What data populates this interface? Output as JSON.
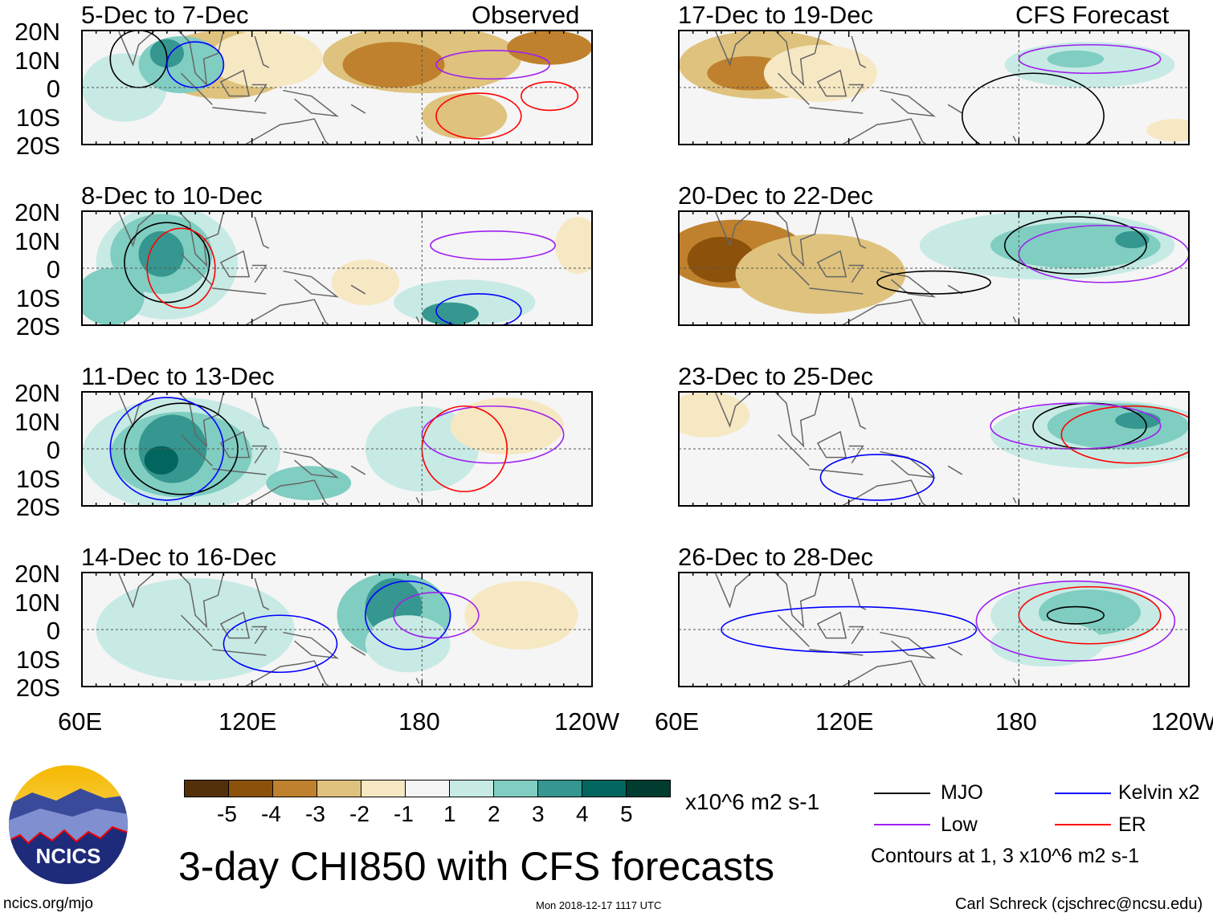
{
  "header": {
    "left_label": "Observed",
    "right_label": "CFS Forecast"
  },
  "panels": [
    {
      "title": "5-Dec to 7-Dec"
    },
    {
      "title": "8-Dec to 10-Dec"
    },
    {
      "title": "11-Dec to 13-Dec"
    },
    {
      "title": "14-Dec to 16-Dec"
    },
    {
      "title": "17-Dec to 19-Dec"
    },
    {
      "title": "20-Dec to 22-Dec"
    },
    {
      "title": "23-Dec to 25-Dec"
    },
    {
      "title": "26-Dec to 28-Dec"
    }
  ],
  "lat_labels": [
    "20N",
    "10N",
    "0",
    "10S",
    "20S"
  ],
  "lon_labels": [
    "60E",
    "120E",
    "180",
    "120W"
  ],
  "colorbar": {
    "levels": [
      "-5",
      "-4",
      "-3",
      "-2",
      "-1",
      "1",
      "2",
      "3",
      "4",
      "5"
    ],
    "colors": [
      "#54300a",
      "#8c510a",
      "#bf812d",
      "#dfc27d",
      "#f6e8c3",
      "#f5f5f5",
      "#c7eae5",
      "#80cdc1",
      "#35978f",
      "#01665e",
      "#003c30"
    ],
    "units": "x10^6 m2 s-1"
  },
  "legend": {
    "items": [
      {
        "label": "MJO",
        "color": "#000000"
      },
      {
        "label": "Kelvin x2",
        "color": "#0000ff"
      },
      {
        "label": "Low",
        "color": "#a020f0"
      },
      {
        "label": "ER",
        "color": "#ff0000"
      }
    ],
    "note": "Contours at 1, 3 x10^6 m2 s-1"
  },
  "title": "3-day CHI850 with CFS forecasts",
  "logo": {
    "text": "NCICS"
  },
  "footer": {
    "url": "ncics.org/mjo",
    "timestamp": "Mon 2018-12-17 1117 UTC",
    "credit": "Carl Schreck (cjschrec@ncsu.edu)"
  }
}
